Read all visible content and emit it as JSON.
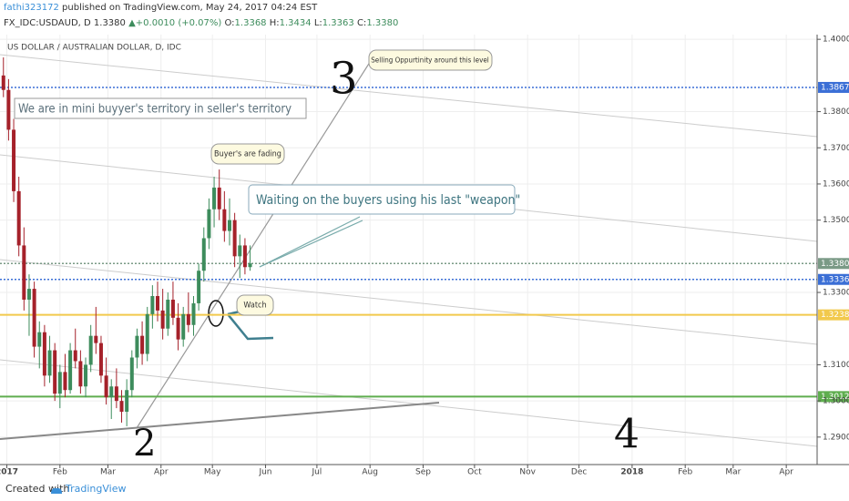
{
  "header": {
    "user": "fathi323172",
    "published": "published on TradingView.com, May 24, 2017 04:24 EST",
    "symbol": "FX_IDC:USDAUD, D",
    "price": "1.3380",
    "change": "▲+0.0010 (+0.07%)",
    "o_label": "O:",
    "o": "1.3368",
    "h_label": "H:",
    "h": "1.3434",
    "l_label": "L:",
    "l": "1.3363",
    "c_label": "C:",
    "c": "1.3380"
  },
  "footer": {
    "created": "Created with",
    "brand": "TradingView"
  },
  "chart_data": {
    "type": "candlestick",
    "title": "US DOLLAR / AUSTRALIAN DOLLAR, D, IDC",
    "x": [
      -2,
      1,
      4,
      7,
      10,
      13,
      16,
      19,
      22,
      25,
      28,
      31,
      34,
      37,
      40,
      43,
      46,
      49,
      52,
      55,
      58,
      61,
      64,
      67,
      70,
      73,
      76,
      79,
      82,
      85,
      88,
      91,
      94,
      97,
      100,
      103,
      106,
      109,
      112,
      115,
      118,
      121,
      124,
      127,
      130,
      133,
      136,
      139,
      142
    ],
    "open": [
      1.39,
      1.386,
      1.375,
      1.358,
      1.343,
      1.328,
      1.331,
      1.315,
      1.319,
      1.307,
      1.314,
      1.302,
      1.308,
      1.303,
      1.314,
      1.311,
      1.304,
      1.31,
      1.318,
      1.316,
      1.307,
      1.301,
      1.304,
      1.3,
      1.297,
      1.303,
      1.312,
      1.318,
      1.313,
      1.324,
      1.329,
      1.325,
      1.32,
      1.328,
      1.323,
      1.317,
      1.324,
      1.321,
      1.327,
      1.336,
      1.345,
      1.353,
      1.359,
      1.353,
      1.347,
      1.35,
      1.34,
      1.343,
      1.337
    ],
    "high": [
      1.395,
      1.389,
      1.378,
      1.362,
      1.348,
      1.335,
      1.333,
      1.322,
      1.321,
      1.318,
      1.316,
      1.31,
      1.313,
      1.316,
      1.32,
      1.314,
      1.312,
      1.321,
      1.326,
      1.318,
      1.312,
      1.306,
      1.309,
      1.303,
      1.306,
      1.314,
      1.32,
      1.322,
      1.326,
      1.332,
      1.333,
      1.331,
      1.33,
      1.333,
      1.327,
      1.326,
      1.33,
      1.329,
      1.338,
      1.348,
      1.356,
      1.362,
      1.364,
      1.358,
      1.356,
      1.352,
      1.346,
      1.345,
      1.343
    ],
    "low": [
      1.384,
      1.372,
      1.355,
      1.34,
      1.325,
      1.318,
      1.312,
      1.309,
      1.304,
      1.305,
      1.3,
      1.298,
      1.301,
      1.302,
      1.309,
      1.302,
      1.301,
      1.308,
      1.313,
      1.305,
      1.299,
      1.295,
      1.298,
      1.294,
      1.293,
      1.301,
      1.309,
      1.31,
      1.311,
      1.32,
      1.322,
      1.317,
      1.318,
      1.321,
      1.314,
      1.315,
      1.319,
      1.318,
      1.325,
      1.333,
      1.342,
      1.348,
      1.35,
      1.344,
      1.343,
      1.337,
      1.334,
      1.335,
      1.336
    ],
    "close": [
      1.386,
      1.375,
      1.358,
      1.343,
      1.328,
      1.331,
      1.315,
      1.319,
      1.307,
      1.314,
      1.302,
      1.308,
      1.303,
      1.314,
      1.311,
      1.304,
      1.31,
      1.318,
      1.316,
      1.307,
      1.301,
      1.304,
      1.3,
      1.297,
      1.303,
      1.312,
      1.318,
      1.313,
      1.324,
      1.329,
      1.325,
      1.32,
      1.328,
      1.323,
      1.317,
      1.324,
      1.321,
      1.327,
      1.336,
      1.345,
      1.353,
      1.359,
      1.353,
      1.347,
      1.35,
      1.34,
      1.343,
      1.337,
      1.338
    ],
    "up_color": "#3d8c5c",
    "down_color": "#a5212a",
    "xlim": [
      -4,
      473
    ],
    "ylim": [
      1.2824,
      1.4013
    ],
    "xticks": [
      {
        "value": 0,
        "label": "2017"
      },
      {
        "value": 31,
        "label": "Feb"
      },
      {
        "value": 59,
        "label": "Mar"
      },
      {
        "value": 90,
        "label": "Apr"
      },
      {
        "value": 120,
        "label": "May"
      },
      {
        "value": 151,
        "label": "Jun"
      },
      {
        "value": 181,
        "label": "Jul"
      },
      {
        "value": 212,
        "label": "Aug"
      },
      {
        "value": 243,
        "label": "Sep"
      },
      {
        "value": 273,
        "label": "Oct"
      },
      {
        "value": 304,
        "label": "Nov"
      },
      {
        "value": 334,
        "label": "Dec"
      },
      {
        "value": 365,
        "label": "2018"
      },
      {
        "value": 396,
        "label": "Feb"
      },
      {
        "value": 424,
        "label": "Mar"
      },
      {
        "value": 455,
        "label": "Apr"
      }
    ],
    "yticks": [
      {
        "value": 1.4,
        "label": "1.4000"
      },
      {
        "value": 1.38,
        "label": "1.3800"
      },
      {
        "value": 1.37,
        "label": "1.3700"
      },
      {
        "value": 1.36,
        "label": "1.3600"
      },
      {
        "value": 1.35,
        "label": "1.3500"
      },
      {
        "value": 1.33,
        "label": "1.3300"
      },
      {
        "value": 1.31,
        "label": "1.3100"
      },
      {
        "value": 1.3,
        "label": "1.3000"
      },
      {
        "value": 1.29,
        "label": "1.2900"
      }
    ],
    "grid": true,
    "levels": [
      {
        "value": 1.3867,
        "label": "1.3867",
        "color": "#3b6fd6",
        "dash": true
      },
      {
        "value": 1.338,
        "label": "1.3380",
        "color": "#7a9a86",
        "dash": true
      },
      {
        "value": 1.3336,
        "label": "1.3336",
        "color": "#3b6fd6",
        "dash": true
      },
      {
        "value": 1.3238,
        "label": "1.3238",
        "color": "#f2c94c",
        "dash": false
      },
      {
        "value": 1.3012,
        "label": "1.3012",
        "color": "#5fae4f",
        "dash": false
      }
    ],
    "annotations": [
      "We are in mini buyyer's territory in seller's territory",
      "Buyer's are fading",
      "Waiting on the buyers using his last \"weapon\"",
      "Selling Oppurtinity around this level",
      "Watch",
      "3",
      "2",
      "4"
    ]
  }
}
